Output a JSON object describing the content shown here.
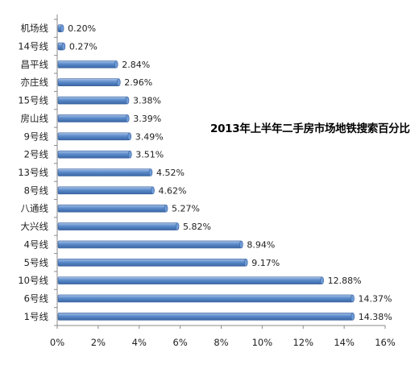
{
  "chart_data": {
    "type": "bar",
    "orientation": "horizontal",
    "title": "2013年上半年二手房市场地铁搜索百分比",
    "categories": [
      "1号线",
      "6号线",
      "10号线",
      "5号线",
      "4号线",
      "大兴线",
      "八通线",
      "8号线",
      "13号线",
      "2号线",
      "9号线",
      "房山线",
      "15号线",
      "亦庄线",
      "昌平线",
      "14号线",
      "机场线"
    ],
    "values": [
      14.38,
      14.37,
      12.88,
      9.17,
      8.94,
      5.82,
      5.27,
      4.62,
      4.52,
      3.51,
      3.49,
      3.39,
      3.38,
      2.96,
      2.84,
      0.27,
      0.2
    ],
    "data_labels": [
      "14.38%",
      "14.37%",
      "12.88%",
      "9.17%",
      "8.94%",
      "5.82%",
      "5.27%",
      "4.62%",
      "4.52%",
      "3.51%",
      "3.49%",
      "3.39%",
      "3.38%",
      "2.96%",
      "2.84%",
      "0.27%",
      "0.20%"
    ],
    "xlim": [
      0,
      16
    ],
    "x_ticks": [
      "0%",
      "2%",
      "4%",
      "6%",
      "8%",
      "10%",
      "12%",
      "14%",
      "16%"
    ],
    "grid": false,
    "legend": "none",
    "bar_color": "#4a7dbd"
  }
}
